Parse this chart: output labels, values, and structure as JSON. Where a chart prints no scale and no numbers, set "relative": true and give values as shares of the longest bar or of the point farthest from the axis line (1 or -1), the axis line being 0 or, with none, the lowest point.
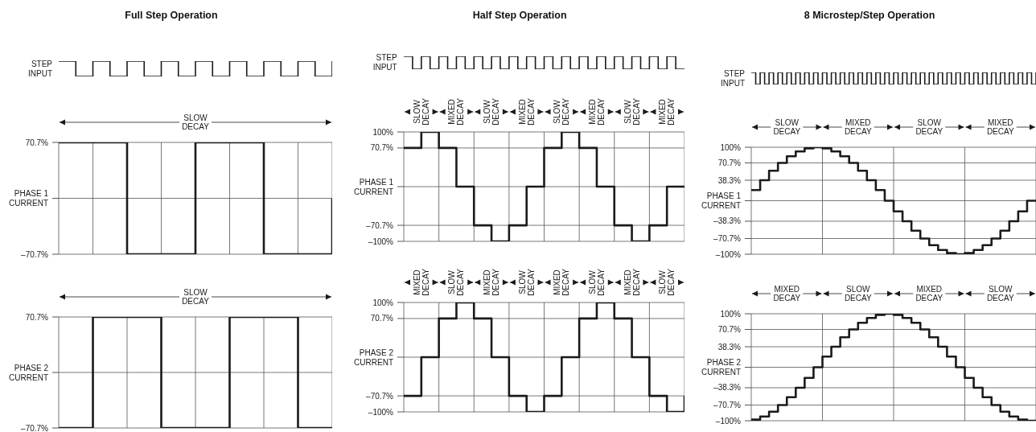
{
  "chart_data": [
    {
      "type": "step",
      "title": "Full Step Operation",
      "ylabel": "STEP INPUT",
      "relative": true,
      "tick_labels": false,
      "color": "#1a1a1a",
      "categories": [
        null,
        null,
        null,
        null,
        null,
        null,
        null,
        null,
        null,
        null,
        null,
        null,
        null,
        null,
        null,
        null,
        null
      ],
      "values": [
        1,
        0,
        1,
        0,
        1,
        0,
        1,
        0,
        1,
        0,
        1,
        0,
        1,
        0,
        1,
        0,
        1
      ]
    },
    {
      "type": "step",
      "color": "#1a1a1a",
      "grid": true,
      "tick_labels": "y",
      "categories": [
        null,
        null,
        null,
        null,
        null,
        null,
        null,
        null,
        null
      ],
      "ylim": [
        -70.7,
        70.7
      ],
      "yticks": [
        {
          "value": 70.7,
          "label": "70.7%"
        },
        {
          "value": 0,
          "label": "PHASE 1 CURRENT"
        },
        {
          "value": -70.7,
          "label": "–70.7%"
        }
      ],
      "annotations": [
        "SLOW DECAY"
      ],
      "values": [
        70.7,
        70.7,
        -70.7,
        -70.7,
        70.7,
        70.7,
        -70.7,
        -70.7,
        0
      ]
    },
    {
      "type": "step",
      "color": "#1a1a1a",
      "grid": true,
      "tick_labels": "y",
      "categories": [
        null,
        null,
        null,
        null,
        null,
        null,
        null,
        null,
        null
      ],
      "ylim": [
        -70.7,
        70.7
      ],
      "yticks": [
        {
          "value": 70.7,
          "label": "70.7%"
        },
        {
          "value": 0,
          "label": "PHASE 2 CURRENT"
        },
        {
          "value": -70.7,
          "label": "–70.7%"
        }
      ],
      "annotations": [
        "SLOW DECAY"
      ],
      "values": [
        -70.7,
        70.7,
        70.7,
        -70.7,
        -70.7,
        70.7,
        70.7,
        -70.7,
        -70.7
      ]
    },
    {
      "type": "step",
      "title": "Half Step Operation",
      "ylabel": "STEP INPUT",
      "relative": true,
      "tick_labels": false,
      "color": "#1a1a1a",
      "categories": [
        null,
        null,
        null,
        null,
        null,
        null,
        null,
        null,
        null,
        null,
        null,
        null,
        null,
        null,
        null,
        null,
        null,
        null,
        null,
        null,
        null,
        null,
        null,
        null,
        null,
        null,
        null,
        null,
        null,
        null,
        null,
        null,
        null
      ],
      "values": [
        1,
        0,
        1,
        0,
        1,
        0,
        1,
        0,
        1,
        0,
        1,
        0,
        1,
        0,
        1,
        0,
        1,
        0,
        1,
        0,
        1,
        0,
        1,
        0,
        1,
        0,
        1,
        0,
        1,
        0,
        1,
        0,
        0
      ]
    },
    {
      "type": "step",
      "color": "#1a1a1a",
      "grid": true,
      "tick_labels": "y",
      "categories": [
        null,
        null,
        null,
        null,
        null,
        null,
        null,
        null,
        null,
        null,
        null,
        null,
        null,
        null,
        null,
        null,
        null
      ],
      "ylim": [
        -100,
        100
      ],
      "yticks": [
        {
          "value": 100,
          "label": "100%"
        },
        {
          "value": 70.7,
          "label": "70.7%"
        },
        {
          "value": 0,
          "label": "PHASE 1 CURRENT"
        },
        {
          "value": -70.7,
          "label": "–70.7%"
        },
        {
          "value": -100,
          "label": "–100%"
        }
      ],
      "annotations": [
        "SLOW DECAY",
        "MIXED DECAY",
        "SLOW DECAY",
        "MIXED DECAY",
        "SLOW DECAY",
        "MIXED DECAY",
        "SLOW DECAY",
        "MIXED DECAY"
      ],
      "values": [
        70.7,
        100,
        70.7,
        0,
        -70.7,
        -100,
        -70.7,
        0,
        70.7,
        100,
        70.7,
        0,
        -70.7,
        -100,
        -70.7,
        0,
        0
      ]
    },
    {
      "type": "step",
      "color": "#1a1a1a",
      "grid": true,
      "tick_labels": "y",
      "categories": [
        null,
        null,
        null,
        null,
        null,
        null,
        null,
        null,
        null,
        null,
        null,
        null,
        null,
        null,
        null,
        null,
        null
      ],
      "ylim": [
        -100,
        100
      ],
      "yticks": [
        {
          "value": 100,
          "label": "100%"
        },
        {
          "value": 70.7,
          "label": "70.7%"
        },
        {
          "value": 0,
          "label": "PHASE 2 CURRENT"
        },
        {
          "value": -70.7,
          "label": "–70.7%"
        },
        {
          "value": -100,
          "label": "–100%"
        }
      ],
      "annotations": [
        "MIXED DECAY",
        "SLOW DECAY",
        "MIXED DECAY",
        "SLOW DECAY",
        "MIXED DECAY",
        "SLOW DECAY",
        "MIXED DECAY",
        "SLOW DECAY"
      ],
      "values": [
        -70.7,
        0,
        70.7,
        100,
        70.7,
        0,
        -70.7,
        -100,
        -70.7,
        0,
        70.7,
        100,
        70.7,
        0,
        -70.7,
        -100,
        -70.7
      ]
    },
    {
      "type": "step",
      "title": "8 Microstep/Step Operation",
      "ylabel": "STEP INPUT",
      "relative": true,
      "tick_labels": false,
      "color": "#1a1a1a",
      "categories": [
        null,
        null,
        null,
        null,
        null,
        null,
        null,
        null,
        null,
        null,
        null,
        null,
        null,
        null,
        null,
        null,
        null,
        null,
        null,
        null,
        null,
        null,
        null,
        null,
        null,
        null,
        null,
        null,
        null,
        null,
        null,
        null,
        null,
        null,
        null,
        null,
        null,
        null,
        null,
        null,
        null,
        null,
        null,
        null,
        null,
        null,
        null,
        null,
        null,
        null,
        null,
        null,
        null,
        null,
        null,
        null,
        null,
        null,
        null,
        null,
        null,
        null,
        null,
        null,
        null
      ],
      "values": [
        1,
        0,
        1,
        0,
        1,
        0,
        1,
        0,
        1,
        0,
        1,
        0,
        1,
        0,
        1,
        0,
        1,
        0,
        1,
        0,
        1,
        0,
        1,
        0,
        1,
        0,
        1,
        0,
        1,
        0,
        1,
        0,
        1,
        0,
        1,
        0,
        1,
        0,
        1,
        0,
        1,
        0,
        1,
        0,
        1,
        0,
        1,
        0,
        1,
        0,
        1,
        0,
        1,
        0,
        1,
        0,
        1,
        0,
        1,
        0,
        1,
        0,
        1,
        0,
        1
      ]
    },
    {
      "type": "step",
      "color": "#1a1a1a",
      "grid": true,
      "tick_labels": "y",
      "categories": [
        null,
        null,
        null,
        null,
        null,
        null,
        null,
        null,
        null,
        null,
        null,
        null,
        null,
        null,
        null,
        null,
        null,
        null,
        null,
        null,
        null,
        null,
        null,
        null,
        null,
        null,
        null,
        null,
        null,
        null,
        null,
        null,
        null
      ],
      "ylim": [
        -100,
        100
      ],
      "yticks": [
        {
          "value": 100,
          "label": "100%"
        },
        {
          "value": 70.7,
          "label": "70.7%"
        },
        {
          "value": 38.3,
          "label": "38.3%"
        },
        {
          "value": 0,
          "label": "PHASE 1 CURRENT"
        },
        {
          "value": -38.3,
          "label": "–38.3%"
        },
        {
          "value": -70.7,
          "label": "–70.7%"
        },
        {
          "value": -100,
          "label": "–100%"
        }
      ],
      "annotations": [
        "SLOW DECAY",
        "MIXED DECAY",
        "SLOW DECAY",
        "MIXED DECAY"
      ],
      "values": [
        20,
        38.3,
        56,
        70.7,
        83,
        92,
        98,
        100,
        98,
        92,
        83,
        70.7,
        56,
        38.3,
        20,
        0,
        -20,
        -38.3,
        -56,
        -70.7,
        -83,
        -92,
        -98,
        -100,
        -98,
        -92,
        -83,
        -70.7,
        -56,
        -38.3,
        -20,
        0,
        0
      ]
    },
    {
      "type": "step",
      "color": "#1a1a1a",
      "grid": true,
      "tick_labels": "y",
      "categories": [
        null,
        null,
        null,
        null,
        null,
        null,
        null,
        null,
        null,
        null,
        null,
        null,
        null,
        null,
        null,
        null,
        null,
        null,
        null,
        null,
        null,
        null,
        null,
        null,
        null,
        null,
        null,
        null,
        null,
        null,
        null,
        null,
        null
      ],
      "ylim": [
        -100,
        100
      ],
      "yticks": [
        {
          "value": 100,
          "label": "100%"
        },
        {
          "value": 70.7,
          "label": "70.7%"
        },
        {
          "value": 38.3,
          "label": "38.3%"
        },
        {
          "value": 0,
          "label": "PHASE 2 CURRENT"
        },
        {
          "value": -38.3,
          "label": "–38.3%"
        },
        {
          "value": -70.7,
          "label": "–70.7%"
        },
        {
          "value": -100,
          "label": "–100%"
        }
      ],
      "annotations": [
        "MIXED DECAY",
        "SLOW DECAY",
        "MIXED DECAY",
        "SLOW DECAY"
      ],
      "values": [
        -98,
        -92,
        -83,
        -70.7,
        -56,
        -38.3,
        -20,
        0,
        20,
        38.3,
        56,
        70.7,
        83,
        92,
        98,
        100,
        98,
        92,
        83,
        70.7,
        56,
        38.3,
        20,
        0,
        -20,
        -38.3,
        -56,
        -70.7,
        -83,
        -92,
        -98,
        -100,
        -100
      ]
    }
  ]
}
